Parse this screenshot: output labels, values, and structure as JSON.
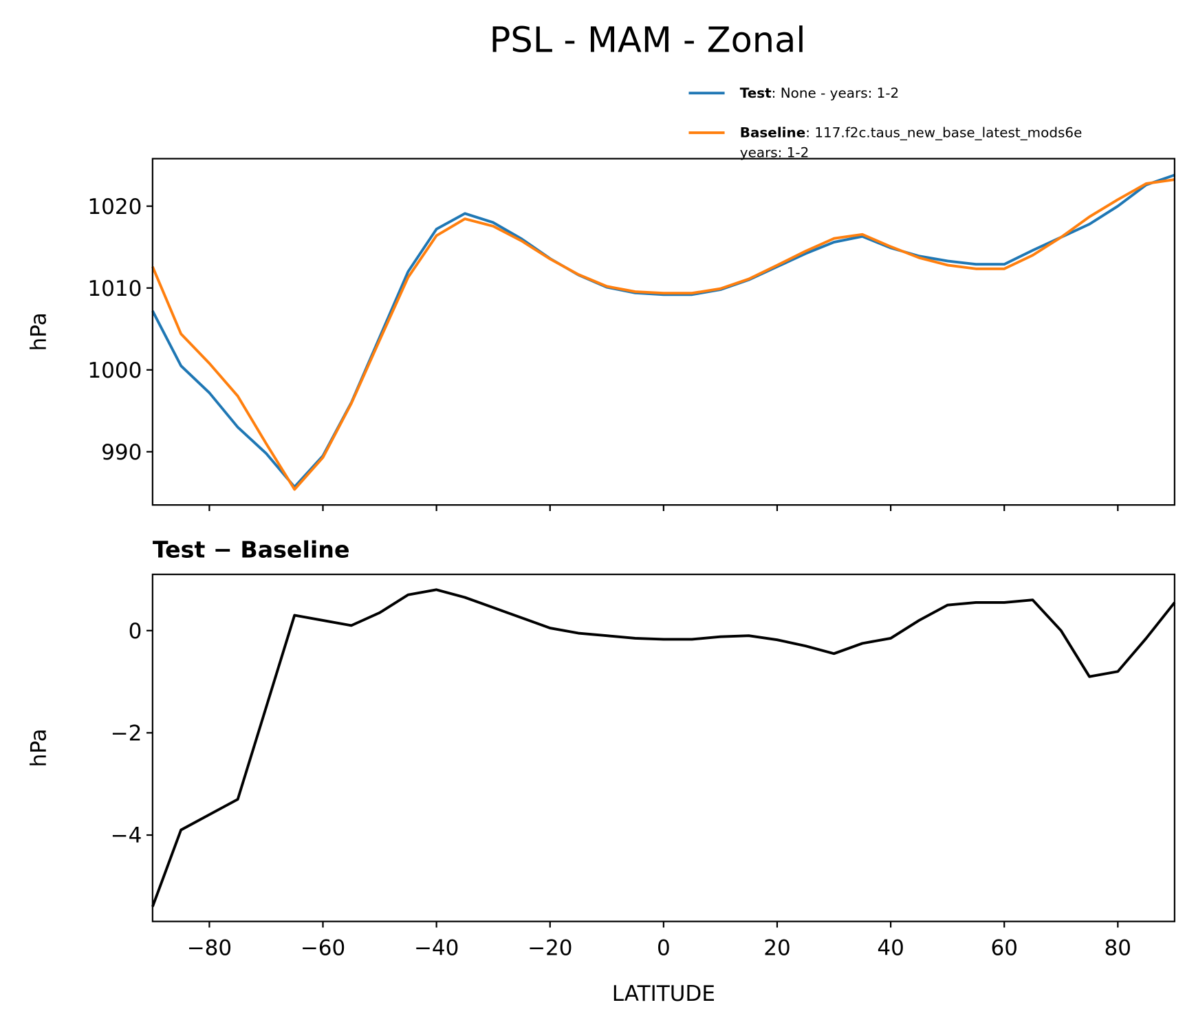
{
  "title": "PSL - MAM - Zonal",
  "chart_data": [
    {
      "type": "line",
      "ylabel": "hPa",
      "x": [
        -90,
        -85,
        -80,
        -75,
        -70,
        -65,
        -60,
        -55,
        -50,
        -45,
        -40,
        -35,
        -30,
        -25,
        -20,
        -15,
        -10,
        -5,
        0,
        5,
        10,
        15,
        20,
        25,
        30,
        35,
        40,
        45,
        50,
        55,
        60,
        65,
        70,
        75,
        80,
        85,
        90
      ],
      "series": [
        {
          "name": "Test",
          "legend_text": [
            ": None - years: 1-2"
          ],
          "color": "#1f77b4",
          "values": [
            1007.2,
            1000.5,
            997.2,
            993.0,
            989.8,
            985.7,
            989.5,
            996.0,
            1004.0,
            1012.0,
            1017.2,
            1019.1,
            1018.0,
            1016.0,
            1013.6,
            1011.6,
            1010.1,
            1009.4,
            1009.2,
            1009.2,
            1009.8,
            1011.0,
            1012.6,
            1014.2,
            1015.6,
            1016.3,
            1014.9,
            1013.9,
            1013.3,
            1012.9,
            1012.9,
            1014.6,
            1016.2,
            1017.8,
            1020.0,
            1022.6,
            1023.8
          ]
        },
        {
          "name": "Baseline",
          "legend_text": [
            ": 117.f2c.taus_new_base_latest_mods6e",
            "years: 1-2"
          ],
          "color": "#ff7f0e",
          "values": [
            1012.6,
            1004.4,
            1000.8,
            996.8,
            991.0,
            985.4,
            989.3,
            995.9,
            1003.65,
            1011.3,
            1016.4,
            1018.45,
            1017.55,
            1015.75,
            1013.55,
            1011.65,
            1010.2,
            1009.55,
            1009.37,
            1009.37,
            1009.92,
            1011.1,
            1012.78,
            1014.5,
            1016.05,
            1016.55,
            1015.05,
            1013.7,
            1012.8,
            1012.35,
            1012.35,
            1014.0,
            1016.2,
            1018.7,
            1020.8,
            1022.75,
            1023.25
          ]
        }
      ],
      "xlim": [
        -90,
        90
      ],
      "xticks": [
        -80,
        -60,
        -40,
        -20,
        0,
        20,
        40,
        60,
        80
      ],
      "xtick_labels": false,
      "ylim": [
        983.5,
        1025.8
      ],
      "yticks": [
        990,
        1000,
        1010,
        1020
      ]
    },
    {
      "type": "line",
      "title": "Test − Baseline",
      "xlabel": "LATITUDE",
      "ylabel": "hPa",
      "x": [
        -90,
        -85,
        -80,
        -75,
        -70,
        -65,
        -60,
        -55,
        -50,
        -45,
        -40,
        -35,
        -30,
        -25,
        -20,
        -15,
        -10,
        -5,
        0,
        5,
        10,
        15,
        20,
        25,
        30,
        35,
        40,
        45,
        50,
        55,
        60,
        65,
        70,
        75,
        80,
        85,
        90
      ],
      "series": [
        {
          "color": "#000000",
          "values": [
            -5.4,
            -3.9,
            -3.6,
            -3.3,
            -1.5,
            0.3,
            0.2,
            0.1,
            0.35,
            0.7,
            0.8,
            0.65,
            0.45,
            0.25,
            0.05,
            -0.05,
            -0.1,
            -0.15,
            -0.17,
            -0.17,
            -0.12,
            -0.1,
            -0.18,
            -0.3,
            -0.45,
            -0.25,
            -0.15,
            0.2,
            0.5,
            0.55,
            0.55,
            0.6,
            0.0,
            -0.9,
            -0.8,
            -0.15,
            0.55
          ]
        }
      ],
      "xlim": [
        -90,
        90
      ],
      "xticks": [
        {
          "value": -80,
          "label": "−80"
        },
        {
          "value": -60,
          "label": "−60"
        },
        {
          "value": -40,
          "label": "−40"
        },
        {
          "value": -20,
          "label": "−20"
        },
        0,
        20,
        40,
        60,
        80
      ],
      "xtick_labels": true,
      "ylim": [
        -5.69,
        1.1
      ],
      "yticks": [
        {
          "value": -4,
          "label": "−4"
        },
        {
          "value": -2,
          "label": "−2"
        },
        0
      ]
    }
  ]
}
